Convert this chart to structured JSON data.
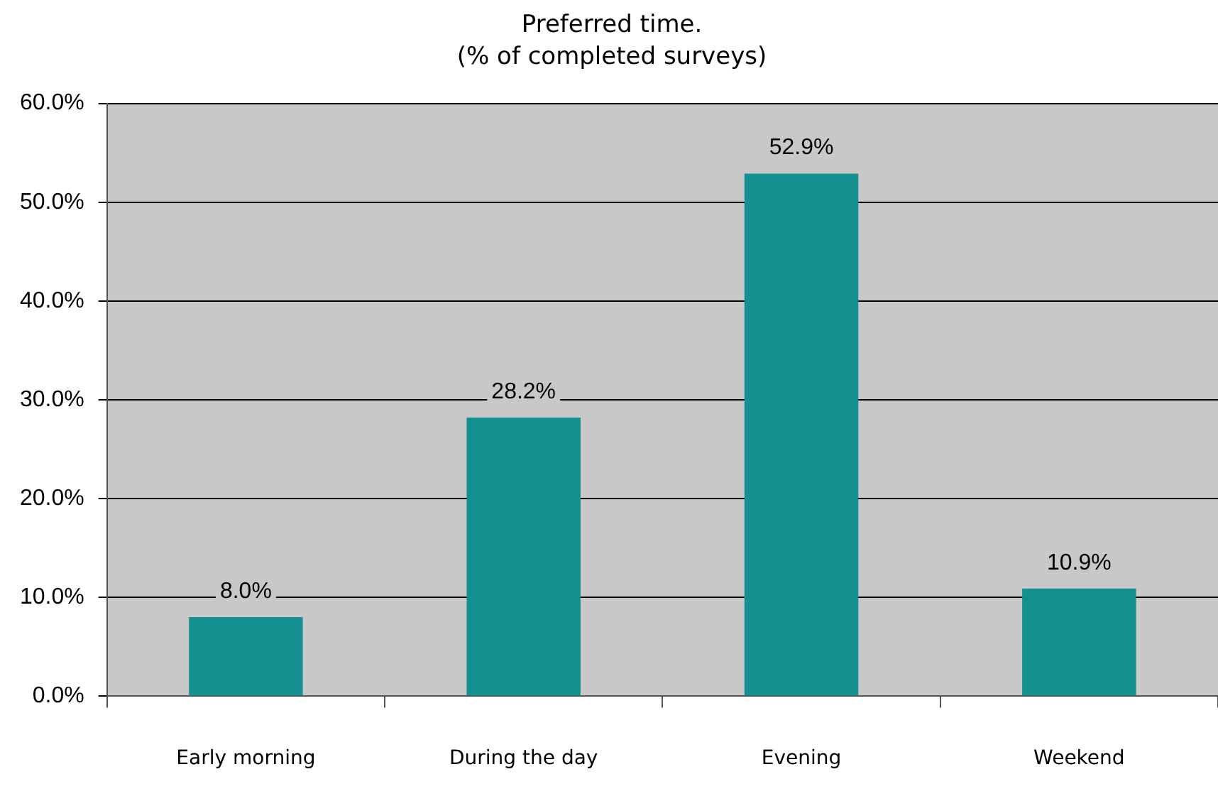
{
  "chart_data": {
    "type": "bar",
    "title": "Preferred time.",
    "subtitle": "(% of completed surveys)",
    "categories": [
      "Early morning",
      "During the day",
      "Evening",
      "Weekend"
    ],
    "values": [
      8.0,
      28.2,
      52.9,
      10.9
    ],
    "color": "#149090",
    "value_labels": [
      "8.0%",
      "28.2%",
      "52.9%",
      "10.9%"
    ],
    "ylim": [
      0,
      60
    ],
    "yticks": [
      {
        "value": 0,
        "label": "0.0%"
      },
      {
        "value": 10,
        "label": "10.0%"
      },
      {
        "value": 20,
        "label": "20.0%"
      },
      {
        "value": 30,
        "label": "30.0%"
      },
      {
        "value": 40,
        "label": "40.0%"
      },
      {
        "value": 50,
        "label": "50.0%"
      },
      {
        "value": 60,
        "label": "60.0%"
      }
    ],
    "grid": "y",
    "legend": false
  }
}
